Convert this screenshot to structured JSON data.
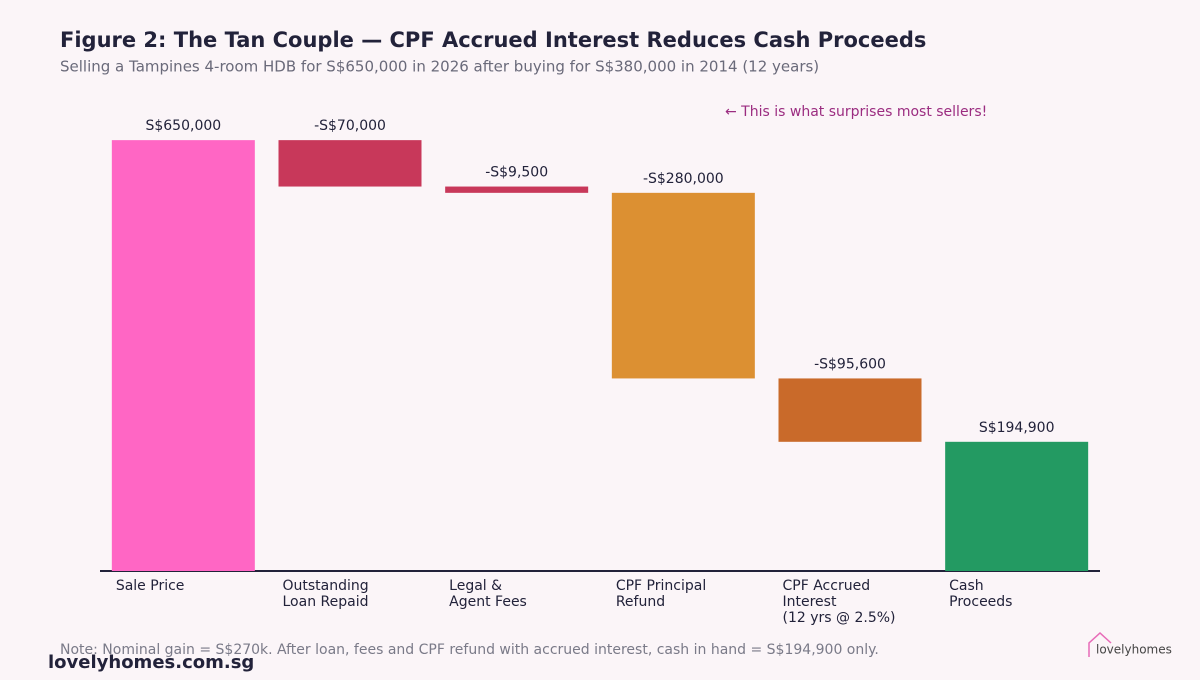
{
  "chart_data": {
    "type": "waterfall",
    "title": "Figure 2: The Tan Couple — CPF Accrued Interest Reduces Cash Proceeds",
    "subtitle": "Selling a Tampines 4-room HDB for S$650,000 in 2026 after buying for S$380,000 in 2014 (12 years)",
    "annotation": "← This is what surprises most sellers!",
    "note": "Note: Nominal gain = S$270k. After loan, fees and CPF refund with accrued interest, cash in hand = S$194,900 only.",
    "footer": "lovelyhomes.com.sg",
    "logo": "lovelyhomes",
    "categories": [
      "Sale Price",
      "Outstanding\nLoan Repaid",
      "Legal &\nAgent Fees",
      "CPF Principal\nRefund",
      "CPF Accrued\nInterest\n(12 yrs @ 2.5%)",
      "Cash\nProceeds"
    ],
    "measures": [
      "absolute",
      "relative",
      "relative",
      "relative",
      "relative",
      "total"
    ],
    "values": [
      650000,
      -70000,
      -9500,
      -280000,
      -95600,
      194900
    ],
    "value_labels": [
      "S$650,000",
      "-S$70,000",
      "-S$9,500",
      "-S$280,000",
      "-S$95,600",
      "S$194,900"
    ],
    "colors": [
      "#ff66c4",
      "#c8385a",
      "#c8385a",
      "#dc9032",
      "#c96a2a",
      "#239a62"
    ],
    "ylim": [
      0,
      700000
    ]
  }
}
